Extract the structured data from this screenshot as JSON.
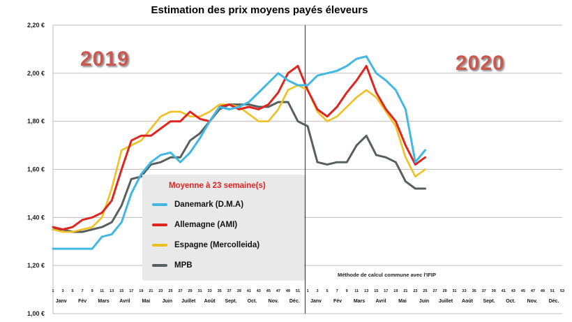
{
  "overlays": {
    "year_left": "2019",
    "year_right": "2020",
    "note": "Méthode de calcul commune avec l'IFIP"
  },
  "legend": {
    "title": "Moyenne à  23 semaine(s)",
    "items": [
      {
        "label": "Danemark (D.M.A)",
        "color": "#41b8e4"
      },
      {
        "label": "Allemagne (AMI)",
        "color": "#e0241f"
      },
      {
        "label": "Espagne (Mercolleida)",
        "color": "#f0c020"
      },
      {
        "label": "MPB",
        "color": "#56605f"
      }
    ]
  },
  "chart_data": {
    "type": "line",
    "title": "Estimation des prix moyens payés éleveurs",
    "x_unit": "week",
    "years": [
      "2019",
      "2020"
    ],
    "weeks_2019": 52,
    "weeks_2020": 53,
    "ylim": [
      1.0,
      2.2
    ],
    "grid": true,
    "legend_position": "inside-bottom-left",
    "y_ticks": [
      {
        "value": 2.2,
        "label": "2,20 €"
      },
      {
        "value": 2.0,
        "label": "2,00 €"
      },
      {
        "value": 1.8,
        "label": "1,80 €"
      },
      {
        "value": 1.6,
        "label": "1,60 €"
      },
      {
        "value": 1.4,
        "label": "1,40 €"
      },
      {
        "value": 1.2,
        "label": "1,20 €"
      },
      {
        "value": 1.0,
        "label": "1,00 €"
      }
    ],
    "x_tick_labels_2019": [
      "1",
      "3",
      "5",
      "7",
      "9",
      "11",
      "13",
      "15",
      "17",
      "19",
      "21",
      "23",
      "25",
      "27",
      "29",
      "31",
      "33",
      "35",
      "37",
      "39",
      "41",
      "43",
      "45",
      "47",
      "49",
      "51"
    ],
    "x_tick_labels_2020": [
      "1",
      "3",
      "5",
      "7",
      "9",
      "11",
      "13",
      "15",
      "17",
      "19",
      "21",
      "23",
      "25",
      "27",
      "29",
      "31",
      "33",
      "35",
      "37",
      "39",
      "41",
      "43",
      "45",
      "47",
      "49",
      "51",
      "53"
    ],
    "month_labels": [
      "Janv",
      "Fév",
      "Mars",
      "Avril",
      "Mai",
      "Juin",
      "Juillet",
      "Août",
      "Sept.",
      "Oct.",
      "Nov.",
      "Déc."
    ],
    "series": [
      {
        "name": "Danemark (D.M.A)",
        "color": "#41b8e4",
        "width": 3,
        "x": [
          1,
          3,
          5,
          7,
          9,
          11,
          13,
          15,
          17,
          19,
          21,
          23,
          25,
          27,
          29,
          31,
          33,
          35,
          37,
          39,
          41,
          43,
          45,
          47,
          49,
          51,
          53,
          55,
          57,
          59,
          61,
          63,
          65,
          67,
          69,
          71,
          73,
          75,
          77
        ],
        "values": [
          1.27,
          1.27,
          1.27,
          1.27,
          1.27,
          1.32,
          1.33,
          1.38,
          1.5,
          1.58,
          1.63,
          1.66,
          1.67,
          1.63,
          1.67,
          1.73,
          1.8,
          1.86,
          1.85,
          1.86,
          1.88,
          1.92,
          1.96,
          2.0,
          1.97,
          1.95,
          1.95,
          1.99,
          2.0,
          2.01,
          2.03,
          2.06,
          2.07,
          2.0,
          1.97,
          1.93,
          1.85,
          1.63,
          1.68
        ]
      },
      {
        "name": "Allemagne (AMI)",
        "color": "#e0241f",
        "width": 3,
        "x": [
          1,
          3,
          5,
          7,
          9,
          11,
          13,
          15,
          17,
          19,
          21,
          23,
          25,
          27,
          29,
          31,
          33,
          35,
          37,
          39,
          41,
          43,
          45,
          47,
          49,
          51,
          53,
          55,
          57,
          59,
          61,
          63,
          65,
          67,
          69,
          71,
          73,
          75,
          77
        ],
        "values": [
          1.36,
          1.35,
          1.36,
          1.39,
          1.4,
          1.42,
          1.47,
          1.6,
          1.72,
          1.74,
          1.74,
          1.77,
          1.8,
          1.8,
          1.84,
          1.81,
          1.8,
          1.86,
          1.87,
          1.85,
          1.86,
          1.85,
          1.87,
          1.92,
          2.0,
          2.03,
          1.93,
          1.85,
          1.82,
          1.86,
          1.92,
          1.97,
          2.03,
          1.92,
          1.85,
          1.8,
          1.7,
          1.62,
          1.65
        ]
      },
      {
        "name": "Espagne (Mercolleida)",
        "color": "#f0c020",
        "width": 2.6,
        "x": [
          1,
          3,
          5,
          7,
          9,
          11,
          13,
          15,
          17,
          19,
          21,
          23,
          25,
          27,
          29,
          31,
          33,
          35,
          37,
          39,
          41,
          43,
          45,
          47,
          49,
          51,
          53,
          55,
          57,
          59,
          61,
          63,
          65,
          67,
          69,
          71,
          73,
          75,
          77
        ],
        "values": [
          1.35,
          1.34,
          1.34,
          1.35,
          1.36,
          1.4,
          1.52,
          1.68,
          1.7,
          1.72,
          1.77,
          1.82,
          1.84,
          1.84,
          1.82,
          1.82,
          1.84,
          1.87,
          1.87,
          1.86,
          1.83,
          1.8,
          1.8,
          1.85,
          1.93,
          1.95,
          1.93,
          1.84,
          1.8,
          1.82,
          1.86,
          1.9,
          1.93,
          1.9,
          1.84,
          1.78,
          1.65,
          1.57,
          1.6
        ]
      },
      {
        "name": "MPB",
        "color": "#56605f",
        "width": 3,
        "x": [
          1,
          3,
          5,
          7,
          9,
          11,
          13,
          15,
          17,
          19,
          21,
          23,
          25,
          27,
          29,
          31,
          33,
          35,
          37,
          39,
          41,
          43,
          45,
          47,
          49,
          51,
          53,
          55,
          57,
          59,
          61,
          63,
          65,
          67,
          69,
          71,
          73,
          75,
          77
        ],
        "values": [
          1.35,
          1.35,
          1.34,
          1.34,
          1.35,
          1.36,
          1.38,
          1.45,
          1.56,
          1.57,
          1.62,
          1.63,
          1.65,
          1.65,
          1.72,
          1.75,
          1.8,
          1.85,
          1.87,
          1.87,
          1.87,
          1.86,
          1.86,
          1.88,
          1.88,
          1.8,
          1.78,
          1.63,
          1.62,
          1.63,
          1.63,
          1.7,
          1.74,
          1.66,
          1.65,
          1.63,
          1.55,
          1.52,
          1.52
        ]
      }
    ]
  }
}
